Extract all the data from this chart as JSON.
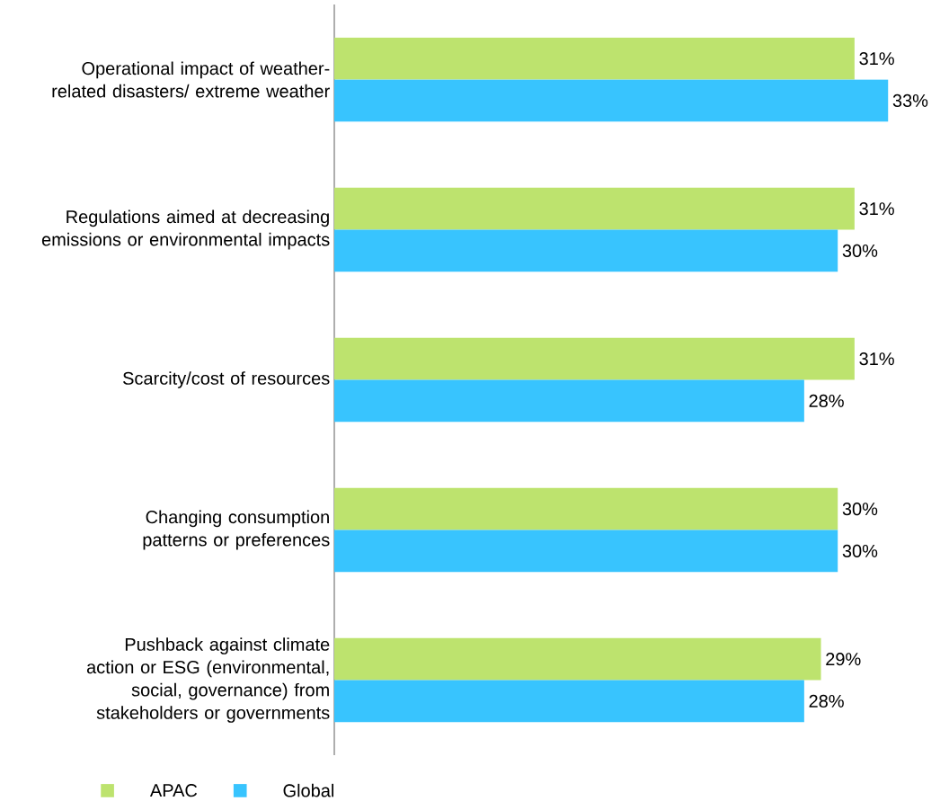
{
  "chart_data": {
    "type": "bar",
    "orientation": "horizontal",
    "categories": [
      "Operational impact of weather-related disasters/ extreme weather",
      "Regulations aimed at decreasing emissions or environmental impacts",
      "Scarcity/cost of resources",
      "Changing consumption patterns or preferences",
      "Pushback against climate action or ESG (environmental, social, governance) from stakeholders or governments"
    ],
    "series": [
      {
        "name": "APAC",
        "color": "#bde36e",
        "values": [
          31,
          31,
          31,
          30,
          29
        ],
        "value_labels": [
          "31%",
          "31%",
          "31%",
          "30%",
          "29%"
        ]
      },
      {
        "name": "Global",
        "color": "#38c4fe",
        "values": [
          33,
          30,
          28,
          30,
          28
        ],
        "value_labels": [
          "33%",
          "30%",
          "28%",
          "30%",
          "28%"
        ]
      }
    ],
    "legend": "bottom left"
  }
}
